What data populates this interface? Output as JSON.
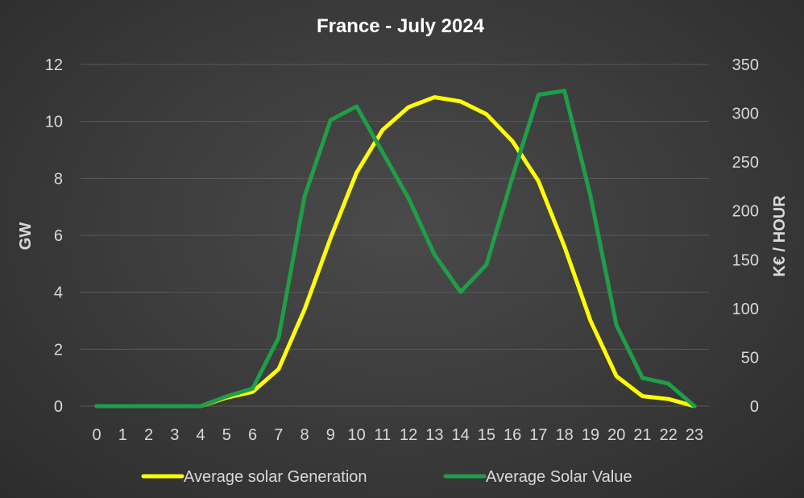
{
  "chart_data": {
    "type": "line",
    "title": "France - July 2024",
    "xlabel": "",
    "ylabel": "GW",
    "y2label": "K€ / HOUR",
    "x": [
      0,
      1,
      2,
      3,
      4,
      5,
      6,
      7,
      8,
      9,
      10,
      11,
      12,
      13,
      14,
      15,
      16,
      17,
      18,
      19,
      20,
      21,
      22,
      23
    ],
    "ylim": [
      0,
      12
    ],
    "yticks": [
      0,
      2,
      4,
      6,
      8,
      10,
      12
    ],
    "y2lim": [
      0,
      350
    ],
    "y2ticks": [
      0,
      50,
      100,
      150,
      200,
      250,
      300,
      350
    ],
    "grid": true,
    "legend_position": "bottom",
    "series": [
      {
        "name": "Average solar Generation",
        "axis": "left",
        "color": "#ffff00",
        "values": [
          0,
          0,
          0,
          0,
          0,
          0.3,
          0.5,
          1.3,
          3.4,
          5.9,
          8.2,
          9.7,
          10.5,
          10.85,
          10.7,
          10.25,
          9.3,
          7.9,
          5.6,
          3.0,
          1.05,
          0.35,
          0.25,
          0
        ]
      },
      {
        "name": "Average Solar Value",
        "axis": "right",
        "color": "#1f9e48",
        "values": [
          0,
          0,
          0,
          0,
          0,
          10,
          18,
          70,
          215,
          293,
          307,
          260,
          213,
          155,
          117,
          145,
          235,
          319,
          323,
          215,
          83,
          29,
          23,
          0
        ]
      }
    ]
  }
}
